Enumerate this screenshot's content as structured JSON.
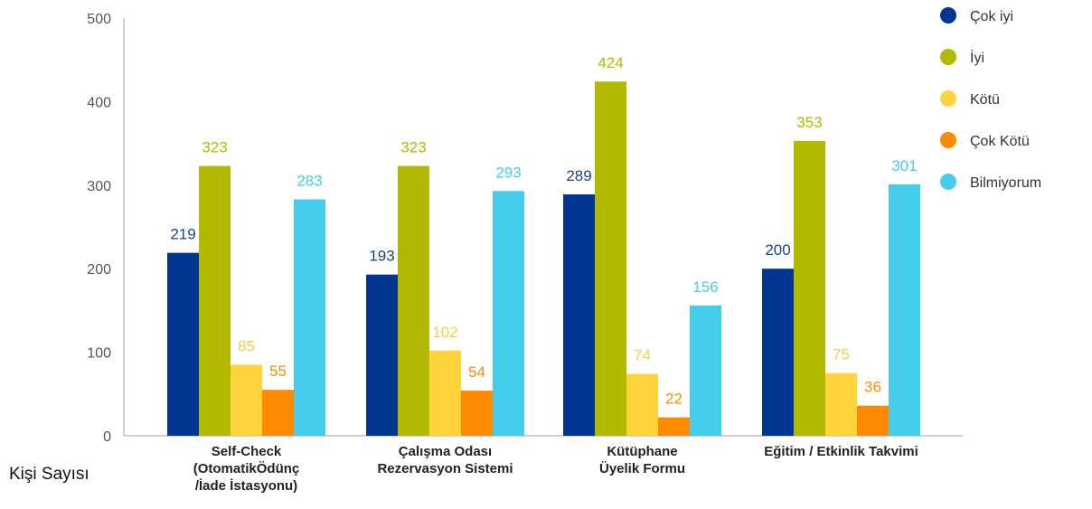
{
  "chart_data": {
    "type": "bar",
    "title": "",
    "xlabel": "",
    "ylabel": "Kişi Sayısı",
    "ylim": [
      0,
      500
    ],
    "yticks": [
      0,
      100,
      200,
      300,
      400,
      500
    ],
    "grid": false,
    "legend_position": "top-right",
    "categories": [
      [
        "Self-Check",
        "(OtomatikÖdünç",
        "/İade İstasyonu)"
      ],
      [
        "Çalışma Odası",
        "Rezervasyon Sistemi"
      ],
      [
        "Kütüphane",
        "Üyelik Formu"
      ],
      [
        "Eğitim / Etkinlik Takvimi"
      ]
    ],
    "series": [
      {
        "name": "Çok iyi",
        "color": "#003591",
        "label_color": "#1f3f8f",
        "values": [
          219,
          193,
          289,
          200
        ]
      },
      {
        "name": "İyi",
        "color": "#b3b900",
        "label_color": "#b3b900",
        "values": [
          323,
          323,
          424,
          353
        ]
      },
      {
        "name": "Kötü",
        "color": "#ffd33b",
        "label_color": "#f5cf4a",
        "values": [
          85,
          102,
          74,
          75
        ]
      },
      {
        "name": "Çok Kötü",
        "color": "#ff8a00",
        "label_color": "#ff8a00",
        "values": [
          55,
          54,
          22,
          36
        ]
      },
      {
        "name": "Bilmiyorum",
        "color": "#44cdec",
        "label_color": "#44cdec",
        "values": [
          283,
          293,
          156,
          301
        ]
      }
    ]
  }
}
